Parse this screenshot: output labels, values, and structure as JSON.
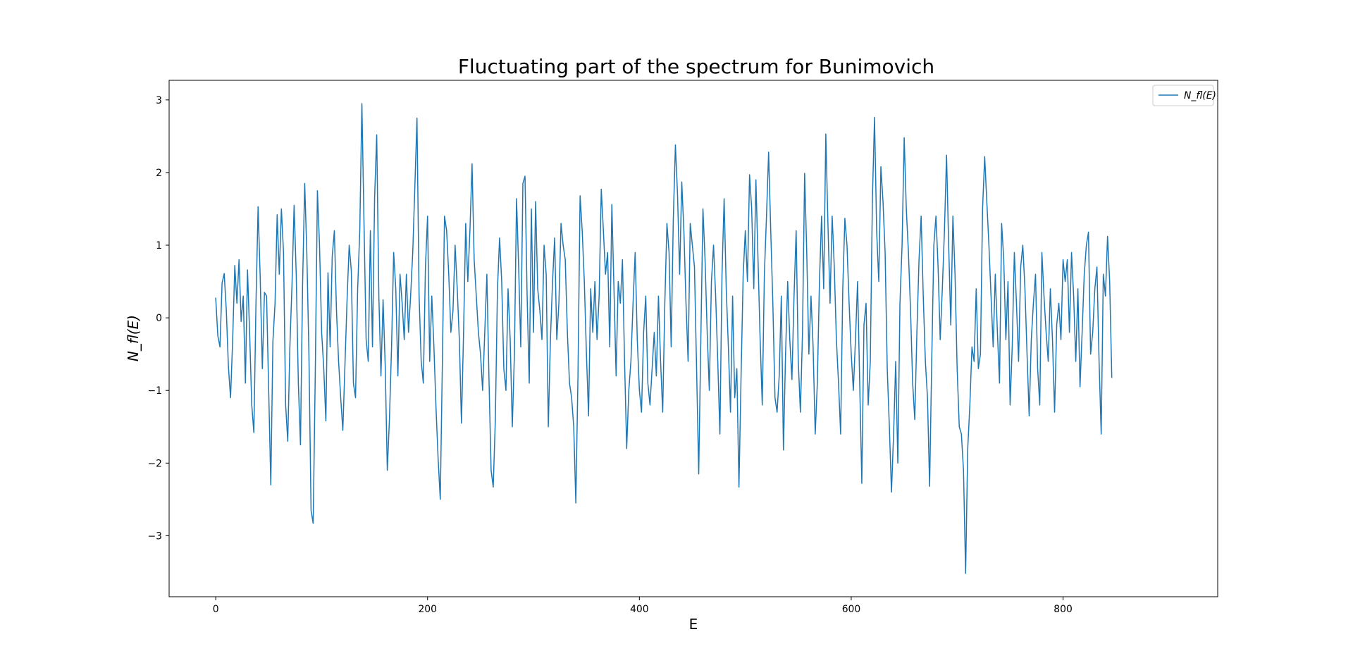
{
  "chart_data": {
    "type": "line",
    "title": "Fluctuating part of the spectrum for Bunimovich",
    "xlabel": "E",
    "ylabel": "N_fl(E)",
    "xlim": [
      -44,
      946
    ],
    "ylim": [
      -3.84,
      3.27
    ],
    "x_ticks": [
      0,
      200,
      400,
      600,
      800
    ],
    "x_tick_labels": [
      "0",
      "200",
      "400",
      "600",
      "800"
    ],
    "y_ticks": [
      3,
      2,
      1,
      0,
      -1,
      -2,
      -3
    ],
    "y_tick_labels": [
      "3",
      "2",
      "1",
      "0",
      "−1",
      "−2",
      "−3"
    ],
    "grid": false,
    "legend_position": "top-right",
    "line_color": "#1f77b4",
    "series": [
      {
        "name": "N_fl(E)",
        "x_start": 0,
        "x_step": 2,
        "values": [
          0.27,
          -0.25,
          -0.4,
          0.48,
          0.61,
          0.1,
          -0.68,
          -1.1,
          -0.3,
          0.72,
          0.2,
          0.8,
          -0.05,
          0.3,
          -0.9,
          0.66,
          -0.2,
          -1.2,
          -1.58,
          0.2,
          1.53,
          0.55,
          -0.7,
          0.35,
          0.3,
          -1.0,
          -2.3,
          -0.32,
          0.2,
          1.42,
          0.6,
          1.5,
          0.9,
          -1.2,
          -1.7,
          -0.4,
          0.45,
          1.55,
          0.6,
          -0.9,
          -1.75,
          0.45,
          1.85,
          0.9,
          -0.5,
          -2.65,
          -2.83,
          -0.75,
          1.75,
          1.0,
          -0.2,
          -0.7,
          -1.42,
          0.62,
          -0.4,
          0.85,
          1.2,
          0.1,
          -0.6,
          -1.1,
          -1.55,
          -0.65,
          0.25,
          1.0,
          0.65,
          -0.9,
          -1.1,
          0.4,
          1.2,
          2.95,
          1.3,
          -0.3,
          -0.6,
          1.2,
          -0.4,
          1.65,
          2.52,
          0.3,
          -0.8,
          0.25,
          -0.65,
          -2.1,
          -1.4,
          -0.4,
          0.9,
          0.4,
          -0.8,
          0.6,
          0.2,
          -0.3,
          0.6,
          -0.2,
          0.3,
          0.9,
          1.8,
          2.75,
          0.3,
          -0.6,
          -0.9,
          0.7,
          1.4,
          -0.6,
          0.3,
          -0.4,
          -1.25,
          -1.95,
          -2.5,
          -0.6,
          1.4,
          1.2,
          0.6,
          -0.2,
          0.1,
          1.0,
          0.4,
          -0.3,
          -1.45,
          -0.2,
          1.3,
          0.5,
          1.2,
          2.12,
          0.8,
          0.3,
          -0.2,
          -0.5,
          -1.0,
          -0.2,
          0.6,
          -0.85,
          -2.1,
          -2.33,
          -1.4,
          0.4,
          1.1,
          0.5,
          -0.7,
          -1.0,
          0.4,
          -0.3,
          -1.5,
          -0.5,
          1.64,
          0.7,
          -0.4,
          1.85,
          1.95,
          0.3,
          -0.9,
          1.5,
          -0.2,
          1.6,
          0.4,
          0.1,
          -0.3,
          1.0,
          0.6,
          -1.5,
          -0.3,
          0.5,
          1.1,
          -0.3,
          0.2,
          1.3,
          1.0,
          0.8,
          -0.2,
          -0.9,
          -1.1,
          -1.5,
          -2.55,
          -0.8,
          1.68,
          1.2,
          0.5,
          -0.5,
          -1.35,
          0.4,
          -0.2,
          0.5,
          -0.3,
          0.3,
          1.77,
          1.2,
          0.6,
          0.9,
          -0.4,
          1.56,
          0.4,
          -0.8,
          0.5,
          0.2,
          0.8,
          -0.6,
          -1.8,
          -1.0,
          -0.6,
          0.2,
          0.9,
          -0.3,
          -1.0,
          -1.3,
          -0.2,
          0.3,
          -0.9,
          -1.2,
          -0.7,
          -0.2,
          -0.8,
          0.3,
          -0.6,
          -1.3,
          0.2,
          1.3,
          0.9,
          -0.4,
          1.35,
          2.38,
          1.7,
          0.6,
          1.87,
          1.2,
          0.2,
          -0.6,
          1.3,
          1.0,
          0.7,
          -0.7,
          -2.15,
          -0.3,
          1.5,
          0.8,
          -0.2,
          -1.0,
          0.5,
          1.0,
          0.3,
          -0.6,
          -1.6,
          0.6,
          1.64,
          0.4,
          -0.4,
          -1.3,
          0.3,
          -1.1,
          -0.7,
          -2.33,
          -0.8,
          0.6,
          1.2,
          0.5,
          1.97,
          1.5,
          0.4,
          1.9,
          0.8,
          -0.3,
          -1.2,
          0.6,
          1.4,
          2.28,
          1.2,
          0.2,
          -1.1,
          -1.3,
          -0.8,
          0.3,
          -1.82,
          -0.5,
          0.5,
          -0.3,
          -0.85,
          0.3,
          1.2,
          -0.6,
          -1.3,
          -0.2,
          1.99,
          0.9,
          -0.5,
          0.3,
          -0.4,
          -1.6,
          -0.9,
          0.5,
          1.4,
          0.4,
          2.53,
          1.3,
          0.2,
          1.4,
          0.7,
          -0.3,
          -0.9,
          -1.6,
          0.4,
          1.37,
          1.0,
          0.2,
          -0.5,
          -1.0,
          -0.3,
          0.5,
          -0.9,
          -2.28,
          -0.1,
          0.2,
          -1.2,
          -0.6,
          1.64,
          2.76,
          1.2,
          0.5,
          2.08,
          1.6,
          0.9,
          -0.7,
          -1.5,
          -2.4,
          -1.6,
          -0.6,
          -2.0,
          0.2,
          1.0,
          2.48,
          1.5,
          0.9,
          0.1,
          -0.9,
          -1.4,
          -0.2,
          0.8,
          1.4,
          0.3,
          -0.6,
          -1.1,
          -2.32,
          -0.6,
          1.0,
          1.4,
          0.7,
          -0.3,
          0.4,
          1.2,
          2.24,
          1.0,
          -0.1,
          1.4,
          0.6,
          -0.7,
          -1.5,
          -1.6,
          -2.1,
          -3.52,
          -1.8,
          -1.2,
          -0.4,
          -0.6,
          0.4,
          -0.7,
          -0.5,
          1.5,
          2.22,
          1.6,
          1.0,
          0.3,
          -0.4,
          0.6,
          -0.2,
          -0.9,
          1.3,
          0.8,
          -0.3,
          0.5,
          -1.2,
          -0.4,
          0.9,
          0.2,
          -0.6,
          0.7,
          1.0,
          0.4,
          -0.5,
          -1.35,
          -0.3,
          0.2,
          0.6,
          -0.7,
          -1.2,
          0.9,
          0.3,
          -0.2,
          -0.6,
          0.4,
          -0.3,
          -1.3,
          -0.1,
          0.2,
          -0.3,
          0.8,
          0.5,
          0.8,
          -0.2,
          0.9,
          0.3,
          -0.6,
          0.4,
          -0.95,
          -0.2,
          0.6,
          1.0,
          1.18,
          -0.5,
          -0.2,
          0.4,
          0.7,
          -0.6,
          -1.6,
          0.6,
          0.3,
          1.12,
          0.5,
          -0.82
        ]
      }
    ]
  }
}
